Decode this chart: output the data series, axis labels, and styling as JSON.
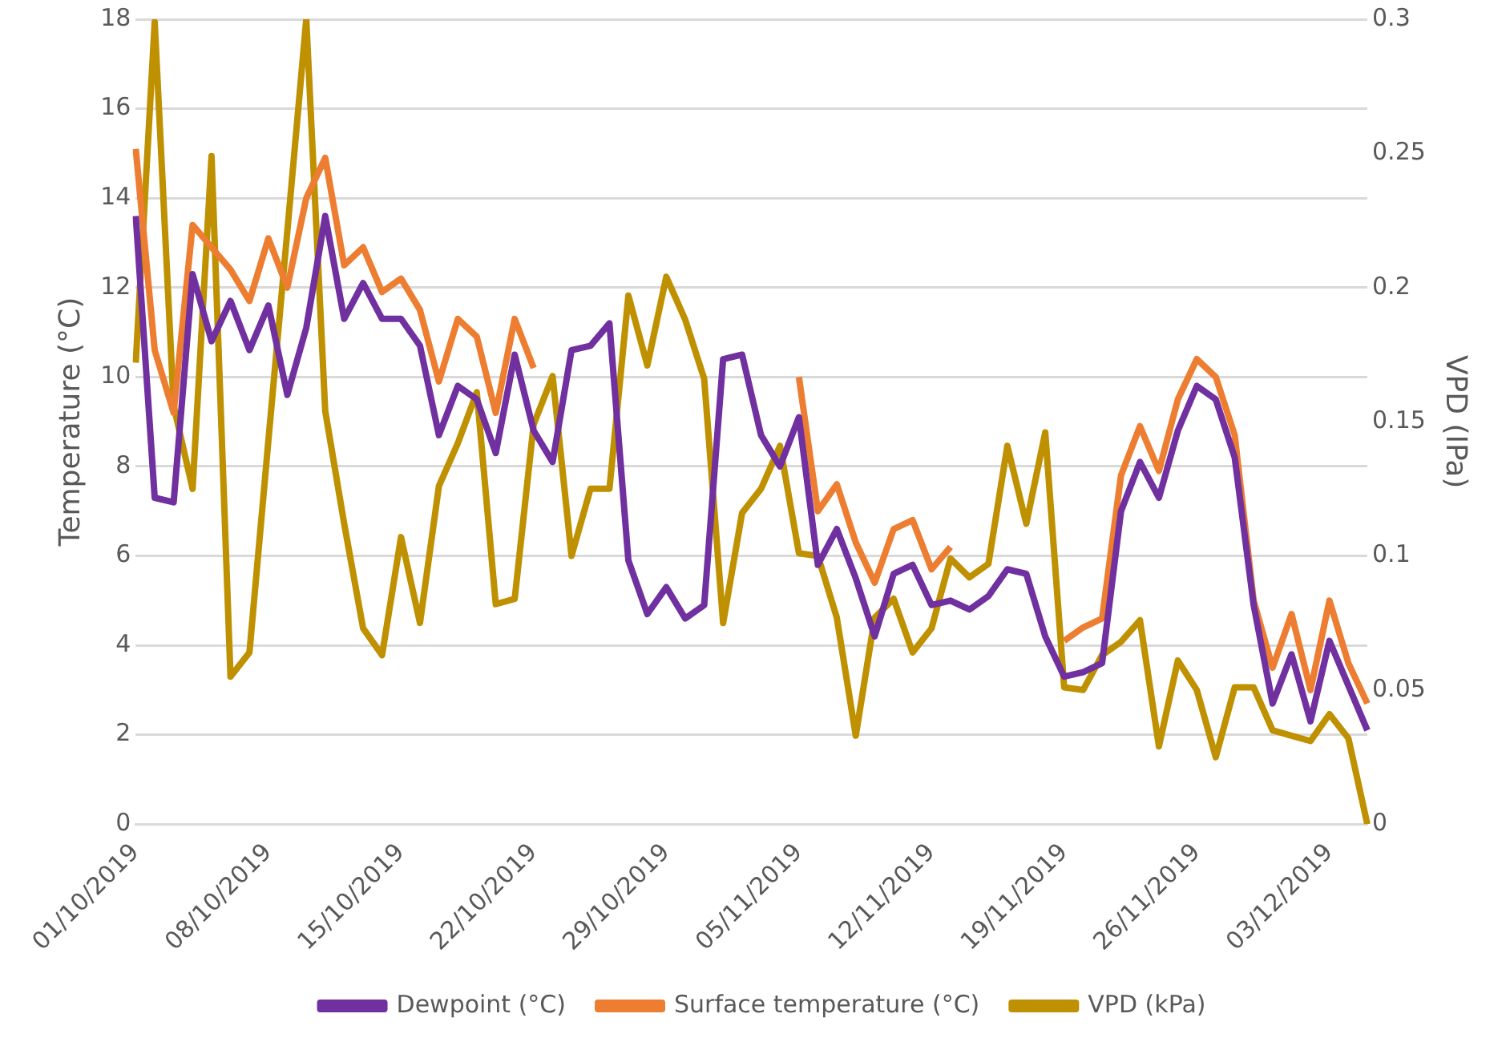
{
  "chart_data": {
    "type": "line",
    "ylabel": "Temperature (°C)",
    "y2label": "VPD (IPa)",
    "categories": [
      "01/10/2019",
      null,
      null,
      null,
      null,
      null,
      null,
      "08/10/2019",
      null,
      null,
      null,
      null,
      null,
      null,
      "15/10/2019",
      null,
      null,
      null,
      null,
      null,
      null,
      "22/10/2019",
      null,
      null,
      null,
      null,
      null,
      null,
      "29/10/2019",
      null,
      null,
      null,
      null,
      null,
      null,
      "05/11/2019",
      null,
      null,
      null,
      null,
      null,
      null,
      "12/11/2019",
      null,
      null,
      null,
      null,
      null,
      null,
      "19/11/2019",
      null,
      null,
      null,
      null,
      null,
      null,
      "26/11/2019",
      null,
      null,
      null,
      null,
      null,
      null,
      "03/12/2019",
      null,
      null
    ],
    "series": [
      {
        "name": "Dewpoint (°C)",
        "color": "#7030a0",
        "values": [
          13.6,
          7.3,
          7.2,
          12.3,
          10.8,
          11.7,
          10.6,
          11.6,
          9.6,
          11.1,
          13.6,
          11.3,
          12.1,
          11.3,
          11.3,
          10.7,
          8.7,
          9.8,
          9.5,
          8.3,
          10.5,
          8.8,
          8.1,
          10.6,
          10.7,
          11.2,
          5.9,
          4.7,
          5.3,
          4.6,
          4.9,
          10.4,
          10.5,
          8.7,
          8.0,
          9.1,
          5.8,
          6.6,
          5.5,
          4.2,
          5.6,
          5.8,
          4.9,
          5.0,
          4.8,
          5.1,
          5.7,
          5.6,
          4.2,
          3.3,
          3.4,
          3.6,
          7.0,
          8.1,
          7.3,
          8.8,
          9.8,
          9.5,
          8.2,
          4.9,
          2.7,
          3.8,
          2.3,
          4.1,
          3.1,
          2.1
        ]
      },
      {
        "name": "Surface temperature (°C)",
        "color": "#ed7d31",
        "values": [
          15.1,
          10.6,
          9.2,
          13.4,
          12.9,
          12.4,
          11.7,
          13.1,
          12.0,
          14.0,
          14.9,
          12.5,
          12.9,
          11.9,
          12.2,
          11.5,
          9.9,
          11.3,
          10.9,
          9.2,
          11.3,
          10.2,
          null,
          null,
          null,
          null,
          null,
          null,
          null,
          null,
          null,
          null,
          null,
          null,
          null,
          10.0,
          7.0,
          7.6,
          6.3,
          5.4,
          6.6,
          6.8,
          5.7,
          6.2,
          null,
          null,
          null,
          null,
          null,
          4.1,
          4.4,
          4.6,
          7.8,
          8.9,
          7.9,
          9.5,
          10.4,
          10.0,
          8.7,
          5.0,
          3.5,
          4.7,
          3.0,
          5.0,
          3.6,
          2.7
        ]
      },
      {
        "name": "VPD (kPa)",
        "color": "#bf9000",
        "axis": "y2",
        "values": [
          0.172,
          0.299,
          0.156,
          0.125,
          0.249,
          0.055,
          0.064,
          0.143,
          0.221,
          0.3,
          0.154,
          0.112,
          0.073,
          0.063,
          0.107,
          0.075,
          0.126,
          0.142,
          0.161,
          0.082,
          0.084,
          0.149,
          0.167,
          0.1,
          0.125,
          0.125,
          0.197,
          0.171,
          0.204,
          0.188,
          0.166,
          0.075,
          0.116,
          0.125,
          0.141,
          0.101,
          0.1,
          0.077,
          0.033,
          0.077,
          0.084,
          0.064,
          0.073,
          0.099,
          0.092,
          0.097,
          0.141,
          0.112,
          0.146,
          0.051,
          0.05,
          0.063,
          0.068,
          0.076,
          0.029,
          0.061,
          0.05,
          0.025,
          0.051,
          0.051,
          0.035,
          0.033,
          0.031,
          0.041,
          0.032,
          0
        ]
      }
    ],
    "ylim": [
      0,
      18
    ],
    "yticks": [
      0,
      2,
      4,
      6,
      8,
      10,
      12,
      14,
      16,
      18
    ],
    "y2lim": [
      0,
      0.3
    ],
    "y2ticks": [
      0,
      0.05,
      0.1,
      0.15,
      0.2,
      0.25,
      0.3
    ],
    "grid": "y",
    "legend": "bottom",
    "marker": "none",
    "line_style": "solid"
  }
}
